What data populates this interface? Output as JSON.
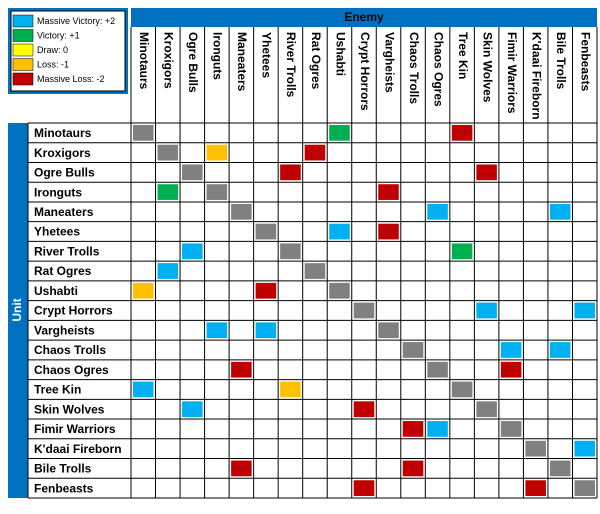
{
  "header": {
    "columns_title": "Enemy",
    "rows_title": "Unit"
  },
  "legend": [
    {
      "label": "Massive Victory: +2",
      "value": 2,
      "color": "#00b0f0"
    },
    {
      "label": "Victory: +1",
      "value": 1,
      "color": "#00b050"
    },
    {
      "label": "Draw: 0",
      "value": 0,
      "color": "#ffff00"
    },
    {
      "label": "Loss: -1",
      "value": -1,
      "color": "#ffc000"
    },
    {
      "label": "Massive Loss: -2",
      "value": -2,
      "color": "#c00000"
    }
  ],
  "table": {
    "columns": [
      "Minotaurs",
      "Kroxigors",
      "Ogre Bulls",
      "Ironguts",
      "Maneaters",
      "Yhetees",
      "River Trolls",
      "Rat Ogres",
      "Ushabti",
      "Crypt Horrors",
      "Vargheists",
      "Chaos Trolls",
      "Chaos Ogres",
      "Tree Kin",
      "Skin Wolves",
      "Fimir Warriors",
      "K'daai Fireborn",
      "Bile Trolls",
      "Fenbeasts"
    ],
    "rows": [
      "Minotaurs",
      "Kroxigors",
      "Ogre Bulls",
      "Ironguts",
      "Maneaters",
      "Yhetees",
      "River Trolls",
      "Rat Ogres",
      "Ushabti",
      "Crypt Horrors",
      "Vargheists",
      "Chaos Trolls",
      "Chaos Ogres",
      "Tree Kin",
      "Skin Wolves",
      "Fimir Warriors",
      "K'daai Fireborn",
      "Bile Trolls",
      "Fenbeasts"
    ],
    "cells": [
      [
        null,
        null,
        null,
        null,
        null,
        null,
        null,
        null,
        1,
        null,
        null,
        null,
        null,
        -2,
        null,
        null,
        null,
        null,
        null
      ],
      [
        null,
        null,
        null,
        -1,
        null,
        null,
        null,
        -2,
        null,
        null,
        null,
        null,
        null,
        null,
        null,
        null,
        null,
        null,
        null
      ],
      [
        null,
        null,
        null,
        null,
        null,
        null,
        -2,
        null,
        null,
        null,
        null,
        null,
        null,
        null,
        -2,
        null,
        null,
        null,
        null
      ],
      [
        null,
        1,
        null,
        null,
        null,
        null,
        null,
        null,
        null,
        null,
        -2,
        null,
        null,
        null,
        null,
        null,
        null,
        null,
        null
      ],
      [
        null,
        null,
        null,
        null,
        null,
        null,
        null,
        null,
        null,
        null,
        null,
        null,
        2,
        null,
        null,
        null,
        null,
        2,
        null
      ],
      [
        null,
        null,
        null,
        null,
        null,
        null,
        null,
        null,
        2,
        null,
        -2,
        null,
        null,
        null,
        null,
        null,
        null,
        null,
        null
      ],
      [
        null,
        null,
        2,
        null,
        null,
        null,
        null,
        null,
        null,
        null,
        null,
        null,
        null,
        1,
        null,
        null,
        null,
        null,
        null
      ],
      [
        null,
        2,
        null,
        null,
        null,
        null,
        null,
        null,
        null,
        null,
        null,
        null,
        null,
        null,
        null,
        null,
        null,
        null,
        null
      ],
      [
        -1,
        null,
        null,
        null,
        null,
        -2,
        null,
        null,
        null,
        null,
        null,
        null,
        null,
        null,
        null,
        null,
        null,
        null,
        null
      ],
      [
        null,
        null,
        null,
        null,
        null,
        null,
        null,
        null,
        null,
        null,
        null,
        null,
        null,
        null,
        2,
        null,
        null,
        null,
        2
      ],
      [
        null,
        null,
        null,
        2,
        null,
        2,
        null,
        null,
        null,
        null,
        null,
        null,
        null,
        null,
        null,
        null,
        null,
        null,
        null
      ],
      [
        null,
        null,
        null,
        null,
        null,
        null,
        null,
        null,
        null,
        null,
        null,
        null,
        null,
        null,
        null,
        2,
        null,
        2,
        null
      ],
      [
        null,
        null,
        null,
        null,
        -2,
        null,
        null,
        null,
        null,
        null,
        null,
        null,
        null,
        null,
        null,
        -2,
        null,
        null,
        null
      ],
      [
        2,
        null,
        null,
        null,
        null,
        null,
        -1,
        null,
        null,
        null,
        null,
        null,
        null,
        null,
        null,
        null,
        null,
        null,
        null
      ],
      [
        null,
        null,
        2,
        null,
        null,
        null,
        null,
        null,
        null,
        -2,
        null,
        null,
        null,
        null,
        null,
        null,
        null,
        null,
        null
      ],
      [
        null,
        null,
        null,
        null,
        null,
        null,
        null,
        null,
        null,
        null,
        null,
        -2,
        2,
        null,
        null,
        null,
        null,
        null,
        null
      ],
      [
        null,
        null,
        null,
        null,
        null,
        null,
        null,
        null,
        null,
        null,
        null,
        null,
        null,
        null,
        null,
        null,
        null,
        null,
        2
      ],
      [
        null,
        null,
        null,
        null,
        -2,
        null,
        null,
        null,
        null,
        null,
        null,
        -2,
        null,
        null,
        null,
        null,
        null,
        null,
        null
      ],
      [
        null,
        null,
        null,
        null,
        null,
        null,
        null,
        null,
        null,
        -2,
        null,
        null,
        null,
        null,
        null,
        null,
        -2,
        null,
        null
      ]
    ]
  }
}
